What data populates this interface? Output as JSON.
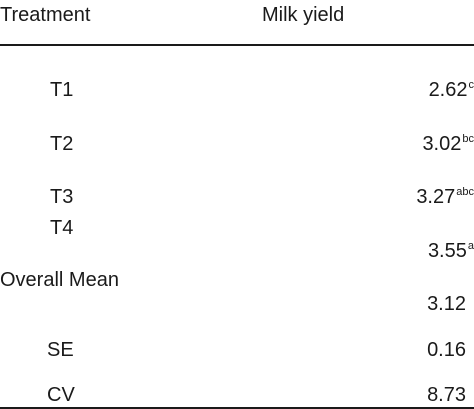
{
  "table": {
    "headers": [
      "Treatment",
      "Milk yield"
    ],
    "rows": [
      {
        "label": "T1",
        "value": "2.62",
        "superscript": "c"
      },
      {
        "label": "T2",
        "value": "3.02",
        "superscript": "bc"
      },
      {
        "label": "T3",
        "value": "3.27",
        "superscript": "abc"
      },
      {
        "label": "T4",
        "value": "3.55",
        "superscript": "a"
      }
    ],
    "summary": [
      {
        "label": "Overall Mean",
        "value": "3.12"
      },
      {
        "label": "SE",
        "value": "0.16"
      },
      {
        "label": "CV",
        "value": "8.73"
      }
    ]
  }
}
